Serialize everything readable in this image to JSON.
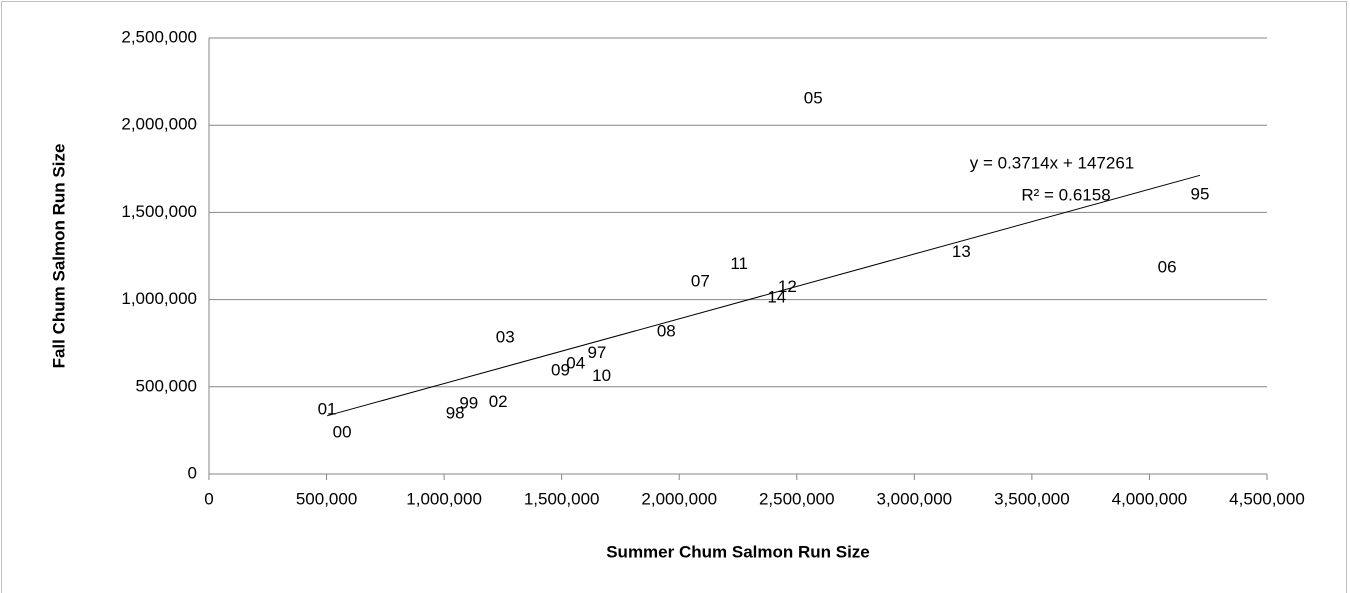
{
  "chart_data": {
    "type": "scatter",
    "x_label": "Summer Chum Salmon Run Size",
    "y_label": "Fall Chum Salmon Run Size",
    "labels": [
      "01",
      "00",
      "98",
      "99",
      "02",
      "03",
      "09",
      "04",
      "97",
      "10",
      "08",
      "07",
      "11",
      "14",
      "12",
      "05",
      "13",
      "06",
      "95"
    ],
    "x": [
      502000,
      566000,
      1047000,
      1105000,
      1230000,
      1260000,
      1495000,
      1560000,
      1650000,
      1670000,
      1945000,
      2090000,
      2255000,
      2415000,
      2460000,
      2570000,
      3200000,
      4075000,
      4215000
    ],
    "y": [
      367000,
      235000,
      345000,
      400000,
      410000,
      780000,
      590000,
      630000,
      690000,
      560000,
      815000,
      1100000,
      1200000,
      1010000,
      1070000,
      2150000,
      1270000,
      1180000,
      1600000
    ],
    "trendline": {
      "equation": "y = 0.3714x + 147261",
      "r_squared": "R² = 0.6158",
      "slope": 0.3714,
      "intercept": 147261,
      "color": "#000000"
    },
    "xlim": [
      0,
      4500000
    ],
    "xticks": [
      0,
      {
        "value": 500000,
        "label": "500,000"
      },
      {
        "value": 1000000,
        "label": "1,000,000"
      },
      {
        "value": 1500000,
        "label": "1,500,000"
      },
      {
        "value": 2000000,
        "label": "2,000,000"
      },
      {
        "value": 2500000,
        "label": "2,500,000"
      },
      {
        "value": 3000000,
        "label": "3,000,000"
      },
      {
        "value": 3500000,
        "label": "3,500,000"
      },
      {
        "value": 4000000,
        "label": "4,000,000"
      },
      {
        "value": 4500000,
        "label": "4,500,000"
      }
    ],
    "ylim": [
      0,
      2500000
    ],
    "yticks": [
      0,
      {
        "value": 500000,
        "label": "500,000"
      },
      {
        "value": 1000000,
        "label": "1,000,000"
      },
      {
        "value": 1500000,
        "label": "1,500,000"
      },
      {
        "value": 2000000,
        "label": "2,000,000"
      },
      {
        "value": 2500000,
        "label": "2,500,000"
      }
    ],
    "grid": true
  }
}
